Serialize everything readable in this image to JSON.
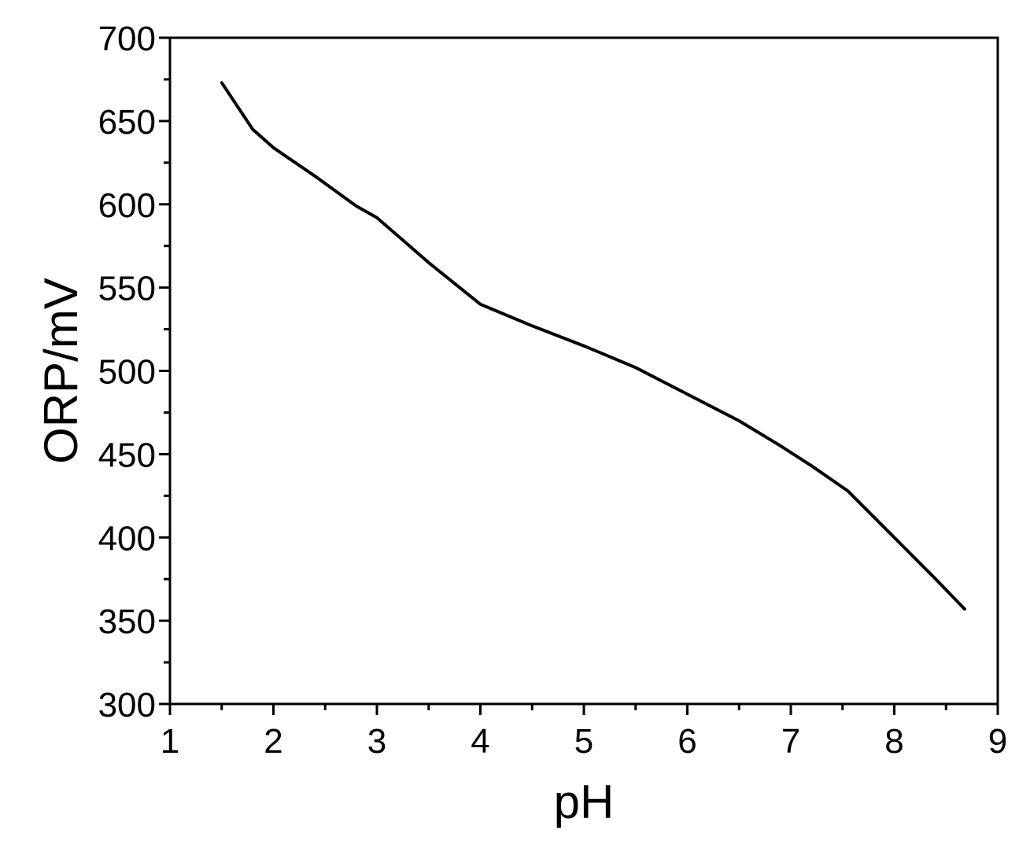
{
  "chart_data": {
    "type": "line",
    "title": "",
    "xlabel": "pH",
    "ylabel": "ORP/mV",
    "xlim": [
      1,
      9
    ],
    "ylim": [
      300,
      700
    ],
    "x_ticks": [
      1,
      2,
      3,
      4,
      5,
      6,
      7,
      8,
      9
    ],
    "y_ticks": [
      300,
      350,
      400,
      450,
      500,
      550,
      600,
      650,
      700
    ],
    "x_minor_ticks": [
      1.5,
      2.5,
      3.5,
      4.5,
      5.5,
      6.5,
      7.5,
      8.5
    ],
    "y_minor_ticks": [
      325,
      375,
      425,
      475,
      525,
      575,
      625,
      675
    ],
    "grid": false,
    "legend": "none",
    "series": [
      {
        "x": [
          1.5,
          1.8,
          2.0,
          2.4,
          2.8,
          3.0,
          3.5,
          4.0,
          4.5,
          5.0,
          5.5,
          6.0,
          6.5,
          6.9,
          7.2,
          7.55,
          8.0,
          8.4,
          8.68
        ],
        "values": [
          673,
          645,
          634,
          617,
          599,
          592,
          565,
          540,
          527,
          515,
          502,
          486,
          470,
          455,
          443,
          428,
          400,
          375,
          357
        ],
        "color": "#000000"
      }
    ]
  }
}
